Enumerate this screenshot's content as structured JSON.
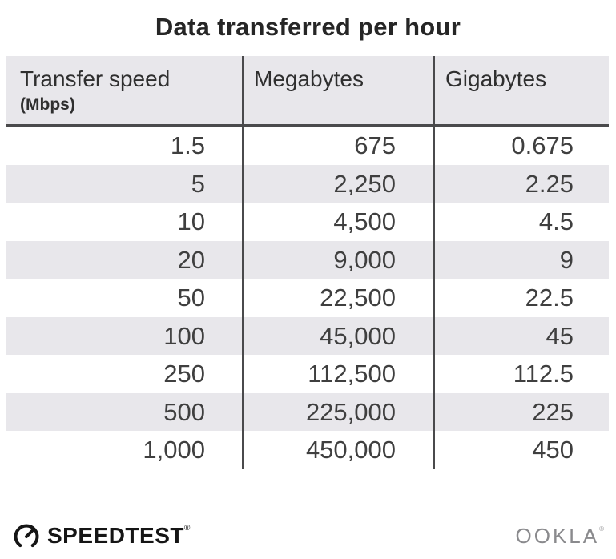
{
  "title": "Data transferred per hour",
  "table": {
    "headers": [
      {
        "label": "Transfer speed",
        "sub": "(Mbps)"
      },
      {
        "label": "Megabytes"
      },
      {
        "label": "Gigabytes"
      }
    ],
    "rows": [
      [
        "1.5",
        "675",
        "0.675"
      ],
      [
        "5",
        "2,250",
        "2.25"
      ],
      [
        "10",
        "4,500",
        "4.5"
      ],
      [
        "20",
        "9,000",
        "9"
      ],
      [
        "50",
        "22,500",
        "22.5"
      ],
      [
        "100",
        "45,000",
        "45"
      ],
      [
        "250",
        "112,500",
        "112.5"
      ],
      [
        "500",
        "225,000",
        "225"
      ],
      [
        "1,000",
        "450,000",
        "450"
      ]
    ]
  },
  "chart_data": {
    "type": "table",
    "title": "Data transferred per hour",
    "columns": [
      "Transfer speed (Mbps)",
      "Megabytes",
      "Gigabytes"
    ],
    "rows": [
      [
        1.5,
        675,
        0.675
      ],
      [
        5,
        2250,
        2.25
      ],
      [
        10,
        4500,
        4.5
      ],
      [
        20,
        9000,
        9
      ],
      [
        50,
        22500,
        22.5
      ],
      [
        100,
        45000,
        45
      ],
      [
        250,
        112500,
        112.5
      ],
      [
        500,
        225000,
        225
      ],
      [
        1000,
        450000,
        450
      ]
    ],
    "layout": {
      "striped_rows": true,
      "alternate_shaded_rows": [
        2,
        4,
        6,
        8
      ],
      "value_alignment": "right"
    }
  },
  "footer": {
    "brand": "SPEEDTEST",
    "brand_mark": "®",
    "brand_icon": "gauge-icon",
    "company": "OOKLA",
    "company_mark": "®"
  },
  "colors": {
    "header_bg": "#e8e7eb",
    "alt_row_bg": "#e8e7eb",
    "divider": "#4a4a4c",
    "title_text": "#262626",
    "body_text": "#3f3f3f",
    "brand_black": "#151515",
    "ookla_gray": "#8a8a8d"
  }
}
